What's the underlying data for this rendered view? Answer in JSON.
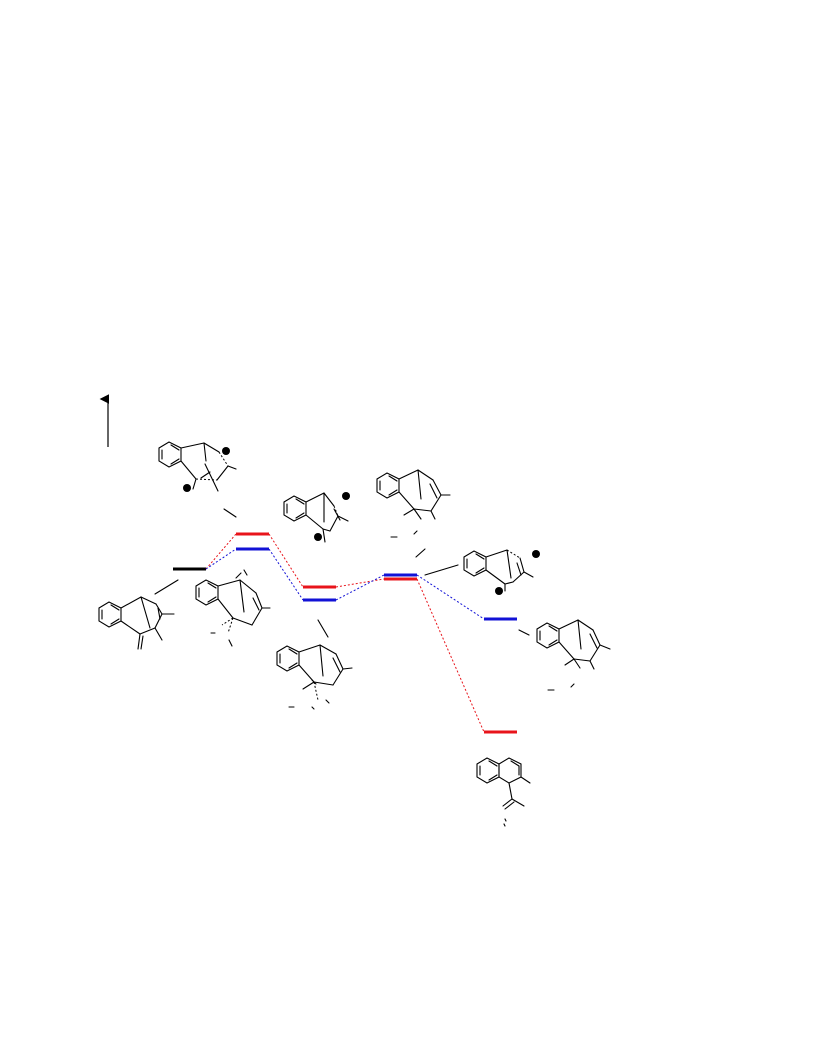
{
  "diagram": {
    "colors": {
      "reference": "#000000",
      "pathway_a": "#e8141b",
      "pathway_b": "#1212d6"
    },
    "icons": [
      "energy-axis-arrow",
      "plus-charge-icon",
      "minus-charge-icon"
    ],
    "charges": {
      "plus": "+",
      "minus": "−"
    }
  }
}
